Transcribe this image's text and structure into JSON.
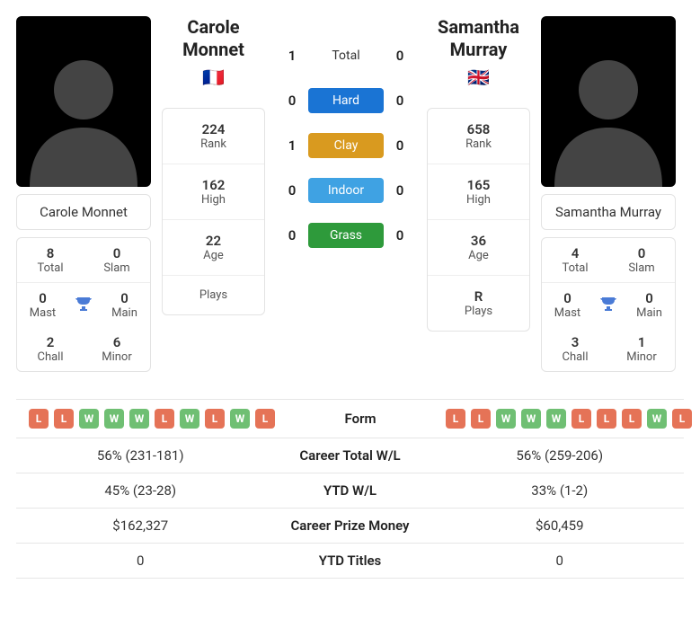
{
  "colors": {
    "win": "#6fbf73",
    "loss": "#e57357",
    "hard": "#1a74d4",
    "clay": "#d99a1f",
    "indoor": "#3fa2e3",
    "grass": "#2e9a3b",
    "trophy": "#4a7bd6"
  },
  "player1": {
    "name_first": "Carole",
    "name_last": "Monnet",
    "full_name": "Carole Monnet",
    "flag": "🇫🇷",
    "titles": {
      "total": "8",
      "total_lbl": "Total",
      "slam": "0",
      "slam_lbl": "Slam",
      "mast": "0",
      "mast_lbl": "Mast",
      "main": "0",
      "main_lbl": "Main",
      "chall": "2",
      "chall_lbl": "Chall",
      "minor": "6",
      "minor_lbl": "Minor"
    },
    "info": {
      "rank": "224",
      "rank_lbl": "Rank",
      "high": "162",
      "high_lbl": "High",
      "age": "22",
      "age_lbl": "Age",
      "plays": "",
      "plays_lbl": "Plays"
    },
    "form": [
      "L",
      "L",
      "W",
      "W",
      "W",
      "L",
      "W",
      "L",
      "W",
      "L"
    ],
    "career_wl": "56% (231-181)",
    "ytd_wl": "45% (23-28)",
    "prize": "$162,327",
    "ytd_titles": "0"
  },
  "player2": {
    "name_first": "Samantha",
    "name_last": "Murray",
    "full_name": "Samantha Murray",
    "flag": "🇬🇧",
    "titles": {
      "total": "4",
      "total_lbl": "Total",
      "slam": "0",
      "slam_lbl": "Slam",
      "mast": "0",
      "mast_lbl": "Mast",
      "main": "0",
      "main_lbl": "Main",
      "chall": "3",
      "chall_lbl": "Chall",
      "minor": "1",
      "minor_lbl": "Minor"
    },
    "info": {
      "rank": "658",
      "rank_lbl": "Rank",
      "high": "165",
      "high_lbl": "High",
      "age": "36",
      "age_lbl": "Age",
      "plays": "R",
      "plays_lbl": "Plays"
    },
    "form": [
      "L",
      "L",
      "W",
      "W",
      "W",
      "L",
      "L",
      "L",
      "W",
      "L"
    ],
    "career_wl": "56% (259-206)",
    "ytd_wl": "33% (1-2)",
    "prize": "$60,459",
    "ytd_titles": "0"
  },
  "h2h": {
    "total_lbl": "Total",
    "total": {
      "p1": "1",
      "p2": "0"
    },
    "hard_lbl": "Hard",
    "hard": {
      "p1": "0",
      "p2": "0"
    },
    "clay_lbl": "Clay",
    "clay": {
      "p1": "1",
      "p2": "0"
    },
    "indoor_lbl": "Indoor",
    "indoor": {
      "p1": "0",
      "p2": "0"
    },
    "grass_lbl": "Grass",
    "grass": {
      "p1": "0",
      "p2": "0"
    }
  },
  "table": {
    "form_lbl": "Form",
    "career_wl_lbl": "Career Total W/L",
    "ytd_wl_lbl": "YTD W/L",
    "prize_lbl": "Career Prize Money",
    "ytd_titles_lbl": "YTD Titles"
  }
}
